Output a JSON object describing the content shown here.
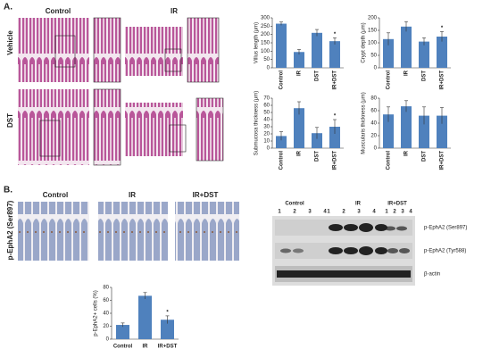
{
  "panel_a": {
    "label": "A.",
    "columns": [
      "Control",
      "IR"
    ],
    "rows": [
      "Vehicle",
      "DST"
    ]
  },
  "panel_b": {
    "label": "B.",
    "columns": [
      "Control",
      "IR",
      "IR+DST"
    ],
    "row_label": "p-EphA2 (Ser897)"
  },
  "blot": {
    "groups": [
      "Control",
      "IR",
      "IR+DST"
    ],
    "lanes": [
      "1",
      "2",
      "3",
      "4"
    ],
    "rows": [
      "p-EphA2 (Ser897)",
      "p-EphA2 (Tyr588)",
      "β-actin"
    ]
  },
  "chart_data": [
    {
      "type": "bar",
      "ylabel": "Villus length (μm)",
      "categories": [
        "Control",
        "IR",
        "DST",
        "IR+DST"
      ],
      "values": [
        265,
        95,
        210,
        160
      ],
      "errors": [
        10,
        15,
        20,
        20
      ],
      "markers": [
        null,
        null,
        null,
        "*"
      ],
      "color": "#4f81bd",
      "ylim": [
        0,
        300
      ],
      "yticks": [
        0,
        50,
        100,
        150,
        200,
        250,
        300
      ]
    },
    {
      "type": "bar",
      "ylabel": "Crypt depth (μm)",
      "categories": [
        "Control",
        "IR",
        "DST",
        "IR+DST"
      ],
      "values": [
        115,
        165,
        105,
        125
      ],
      "errors": [
        25,
        20,
        15,
        20
      ],
      "markers": [
        null,
        null,
        null,
        "*"
      ],
      "color": "#4f81bd",
      "ylim": [
        0,
        200
      ],
      "yticks": [
        0,
        50,
        100,
        150,
        200
      ]
    },
    {
      "type": "bar",
      "ylabel": "Submucosa thickness (μm)",
      "categories": [
        "Control",
        "IR",
        "DST",
        "IR+DST"
      ],
      "values": [
        17,
        56,
        21,
        30
      ],
      "errors": [
        6,
        9,
        8,
        10
      ],
      "markers": [
        null,
        null,
        null,
        "*"
      ],
      "color": "#4f81bd",
      "ylim": [
        0,
        70
      ],
      "yticks": [
        0,
        10,
        20,
        30,
        40,
        50,
        60,
        70
      ]
    },
    {
      "type": "bar",
      "ylabel": "Muscularis thickness (μm)",
      "categories": [
        "Control",
        "IR",
        "DST",
        "IR+DST"
      ],
      "values": [
        54,
        67,
        52,
        52
      ],
      "errors": [
        12,
        9,
        14,
        13
      ],
      "markers": [
        null,
        null,
        null,
        null
      ],
      "color": "#4f81bd",
      "ylim": [
        0,
        80
      ],
      "yticks": [
        0,
        20,
        40,
        60,
        80
      ]
    },
    {
      "type": "bar",
      "ylabel": "p-EphA2+ cells (%)",
      "categories": [
        "Control",
        "IR",
        "IR+DST"
      ],
      "values": [
        22,
        67,
        30
      ],
      "errors": [
        3,
        5,
        6
      ],
      "markers": [
        null,
        null,
        "*"
      ],
      "color": "#4f81bd",
      "ylim": [
        0,
        80
      ],
      "yticks": [
        0,
        20,
        40,
        60,
        80
      ]
    }
  ]
}
